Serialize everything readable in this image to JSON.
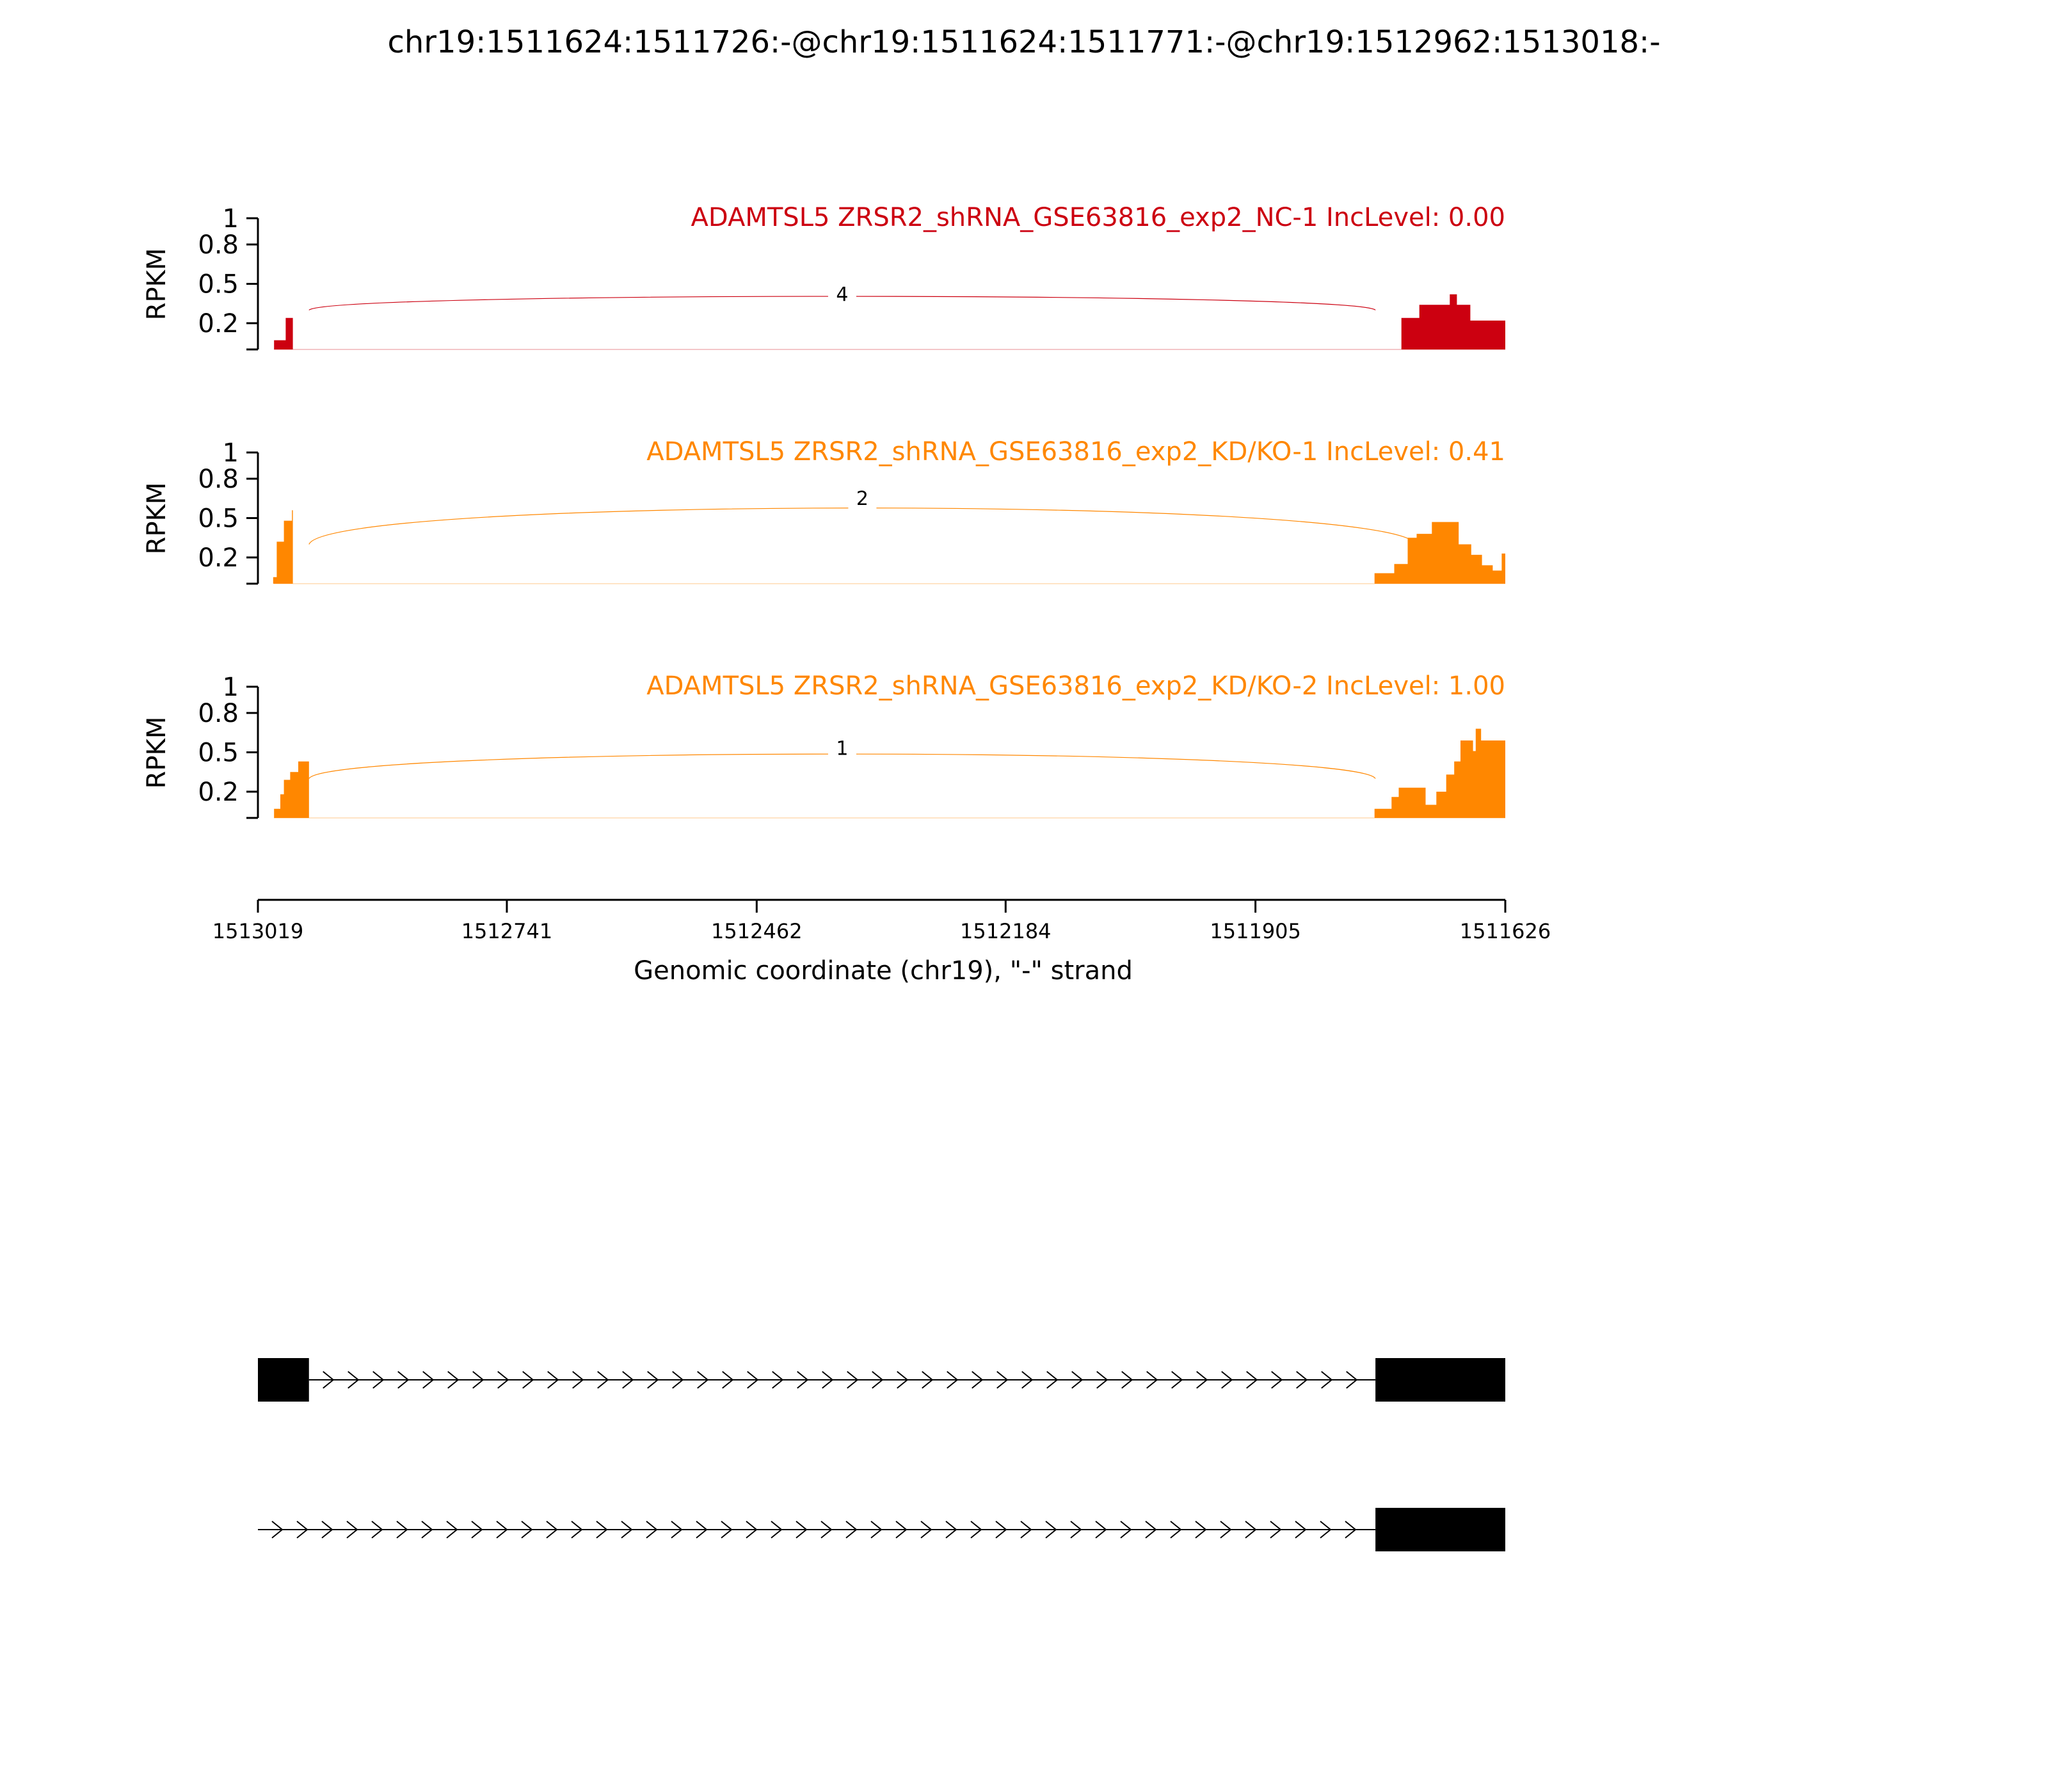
{
  "chart_data": {
    "type": "area",
    "title": "chr19:1511624:1511726:-@chr19:1511624:1511771:-@chr19:1512962:1513018:-",
    "xlabel": "Genomic coordinate (chr19), \"-\" strand",
    "ylabel": "RPKM",
    "x_axis": {
      "range": [
        1513019,
        1511626
      ],
      "reversed": true,
      "ticks": [
        {
          "value": 1513019,
          "label": "1513019"
        },
        {
          "value": 1512741,
          "label": "1512741"
        },
        {
          "value": 1512462,
          "label": "1512462"
        },
        {
          "value": 1512184,
          "label": "1512184"
        },
        {
          "value": 1511905,
          "label": "1511905"
        },
        {
          "value": 1511626,
          "label": "1511626"
        }
      ]
    },
    "y_axis": {
      "range": [
        0,
        1
      ],
      "ticks": [
        {
          "value": 0.2,
          "label": "0.2"
        },
        {
          "value": 0.5,
          "label": "0.5"
        },
        {
          "value": 0.8,
          "label": "0.8"
        },
        {
          "value": 1.0,
          "label": "1"
        }
      ]
    },
    "grid": false,
    "legend": "none",
    "panels": [
      {
        "label": "ADAMTSL5 ZRSR2_shRNA_GSE63816_exp2_NC-1 IncLevel: 0.00",
        "color": "#cc0010",
        "coverage": [
          [
            1513001,
            0.07
          ],
          [
            1512988,
            0.24
          ],
          [
            1512980,
            0
          ],
          [
            1511742,
            0.24
          ],
          [
            1511722,
            0.34
          ],
          [
            1511688,
            0.42
          ],
          [
            1511680,
            0.34
          ],
          [
            1511665,
            0.22
          ],
          [
            1511626,
            0
          ]
        ],
        "junctions": [
          {
            "from": 1512962,
            "to": 1511771,
            "count": "4",
            "side": "above",
            "height": 0.41
          }
        ]
      },
      {
        "label": "ADAMTSL5 ZRSR2_shRNA_GSE63816_exp2_KD/KO-1 IncLevel: 0.41",
        "color": "#ff8700",
        "coverage": [
          [
            1513002,
            0.05
          ],
          [
            1512998,
            0.32
          ],
          [
            1512990,
            0.48
          ],
          [
            1512983,
            0.48
          ],
          [
            1512981,
            0.56
          ],
          [
            1512980,
            0
          ],
          [
            1511772,
            0.08
          ],
          [
            1511750,
            0.15
          ],
          [
            1511735,
            0.35
          ],
          [
            1511725,
            0.38
          ],
          [
            1511708,
            0.47
          ],
          [
            1511678,
            0.3
          ],
          [
            1511664,
            0.22
          ],
          [
            1511652,
            0.14
          ],
          [
            1511640,
            0.1
          ],
          [
            1511630,
            0.23
          ],
          [
            1511626,
            0
          ]
        ],
        "junctions": [
          {
            "from": 1512962,
            "to": 1511726,
            "count": "2",
            "side": "above",
            "height": 0.64
          }
        ]
      },
      {
        "label": "ADAMTSL5 ZRSR2_shRNA_GSE63816_exp2_KD/KO-2 IncLevel: 1.00",
        "color": "#ff8700",
        "coverage": [
          [
            1513001,
            0.07
          ],
          [
            1512994,
            0.18
          ],
          [
            1512990,
            0.29
          ],
          [
            1512983,
            0.35
          ],
          [
            1512974,
            0.43
          ],
          [
            1512962,
            0
          ],
          [
            1511772,
            0.07
          ],
          [
            1511753,
            0.16
          ],
          [
            1511745,
            0.23
          ],
          [
            1511715,
            0.1
          ],
          [
            1511703,
            0.2
          ],
          [
            1511692,
            0.33
          ],
          [
            1511683,
            0.43
          ],
          [
            1511676,
            0.59
          ],
          [
            1511662,
            0.51
          ],
          [
            1511659,
            0.68
          ],
          [
            1511653,
            0.59
          ],
          [
            1511626,
            0
          ]
        ],
        "junctions": [
          {
            "from": 1512962,
            "to": 1511771,
            "count": "1",
            "side": "above",
            "height": 0.52
          }
        ]
      }
    ],
    "isoforms": [
      {
        "exons": [
          [
            1513019,
            1512962
          ],
          [
            1511771,
            1511626
          ]
        ],
        "introns": [
          [
            1512962,
            1511771
          ]
        ]
      },
      {
        "exons": [
          [
            1511771,
            1511626
          ]
        ],
        "introns": [
          [
            1513019,
            1511771
          ]
        ]
      }
    ]
  }
}
